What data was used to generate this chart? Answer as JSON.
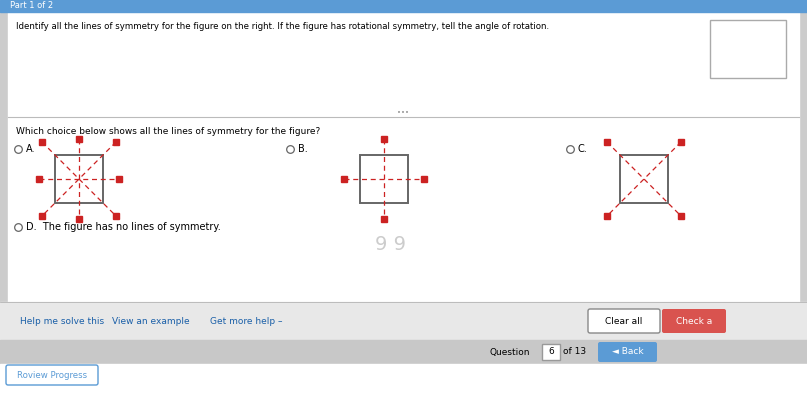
{
  "bg_top_color": "#e0e0e0",
  "bg_bottom_color": "#d8d8d8",
  "white_panel_color": "#ffffff",
  "title_text": "Identify all the lines of symmetry for the figure on the right. If the figure has rotational symmetry, tell the angle of rotation.",
  "question_text": "Which choice below shows all the lines of symmetry for the figure?",
  "option_D_text": "The figure has no lines of symmetry.",
  "button_clear_text": "Clear all",
  "button_check_text": "Check a",
  "button_check_color": "#d9534f",
  "help_solve": "Help me solve this",
  "help_example": "View an example",
  "help_more": "Get more help –",
  "progress_text": "Roview Progress",
  "back_text": "◄ Back",
  "part_text": "Part 1 of 2",
  "top_bar_color": "#5b9bd5",
  "top_bar_height": 12,
  "square_color": "#666666",
  "dashed_line_color": "#cc2222",
  "radio_color": "#666666",
  "link_color": "#1a5fa8",
  "sep_color": "#bbbbbb",
  "nav_bg": "#c8c8c8",
  "help_bg": "#e8e8e8"
}
